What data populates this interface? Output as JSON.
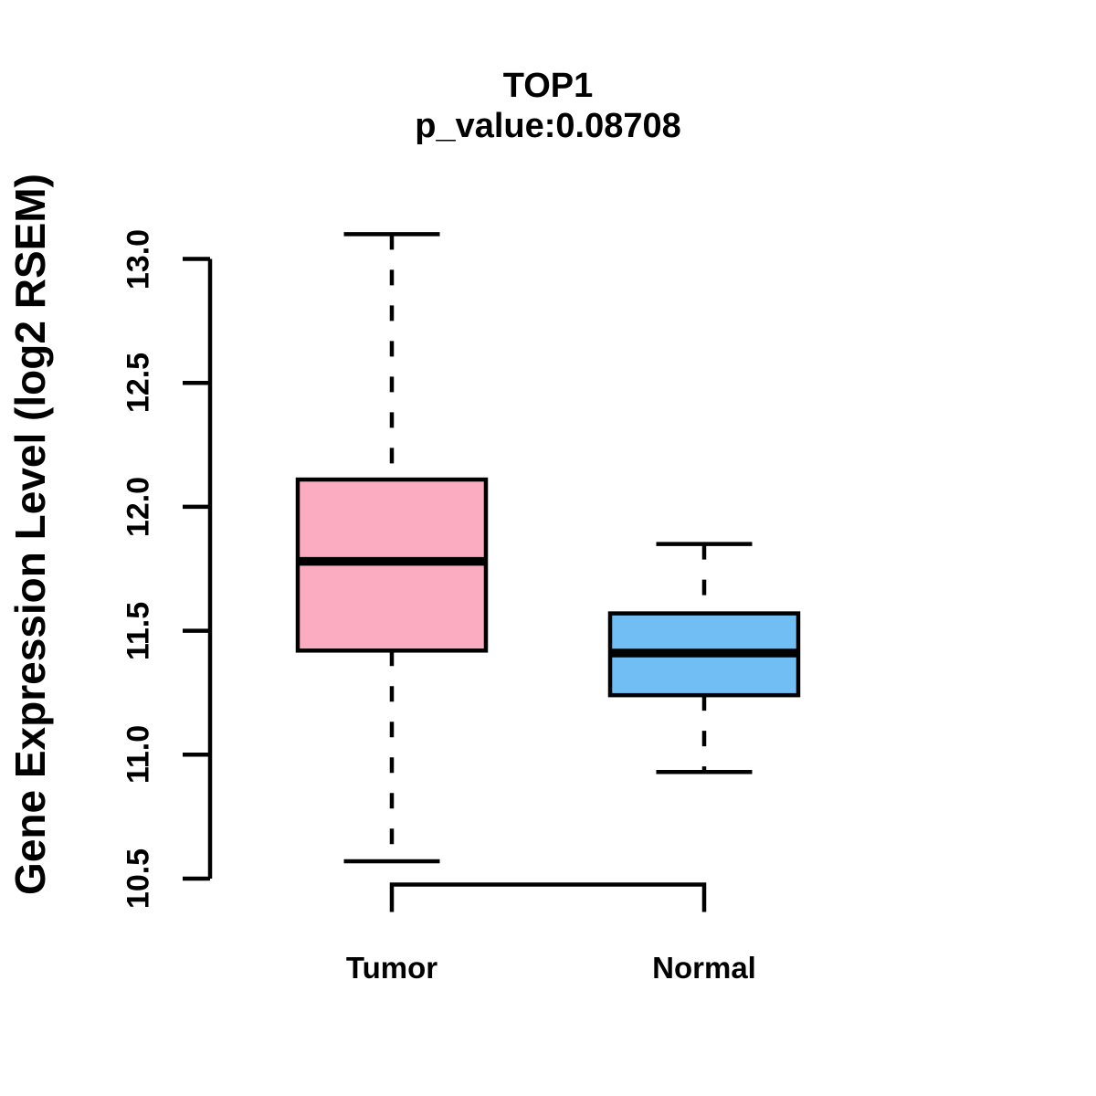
{
  "chart_data": {
    "type": "boxplot",
    "title": "TOP1",
    "subtitle": "p_value:0.08708",
    "p_value": "0.08708",
    "ylabel": "Gene Expression Level (log2 RSEM)",
    "xlabel": "",
    "categories": [
      "Tumor",
      "Normal"
    ],
    "yticks": [
      "10.5",
      "11.0",
      "11.5",
      "12.0",
      "12.5",
      "13.0"
    ],
    "ylim": [
      10.5,
      13.0
    ],
    "grid": false,
    "legend": false,
    "outline_color": "#000000",
    "series": [
      {
        "name": "Tumor",
        "fill_color": "#FCACC0",
        "whisker_low": 10.57,
        "q1": 11.42,
        "median": 11.78,
        "q3": 12.11,
        "whisker_high": 13.1
      },
      {
        "name": "Normal",
        "fill_color": "#71BEF5",
        "whisker_low": 10.93,
        "q1": 11.24,
        "median": 11.41,
        "q3": 11.57,
        "whisker_high": 11.85
      }
    ]
  }
}
